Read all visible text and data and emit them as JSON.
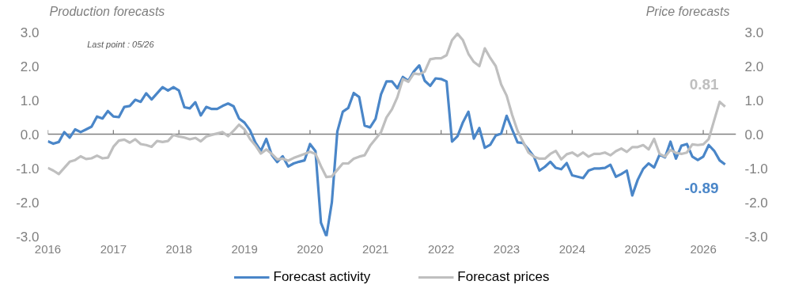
{
  "chart_data": {
    "type": "line",
    "ylabel": "Production forecasts",
    "y2label": "Price forecasts",
    "annotations": [
      "Last point : 05/26",
      {
        "text": "0.81",
        "x": "2026-05",
        "y": 0.81
      },
      {
        "text": "-0.89",
        "x": "2026-05",
        "y": -0.89
      }
    ],
    "x": [
      "2016-01",
      "2016-02",
      "2016-03",
      "2016-04",
      "2016-05",
      "2016-06",
      "2016-07",
      "2016-08",
      "2016-09",
      "2016-10",
      "2016-11",
      "2016-12",
      "2017-01",
      "2017-02",
      "2017-03",
      "2017-04",
      "2017-05",
      "2017-06",
      "2017-07",
      "2017-08",
      "2017-09",
      "2017-10",
      "2017-11",
      "2017-12",
      "2018-01",
      "2018-02",
      "2018-03",
      "2018-04",
      "2018-05",
      "2018-06",
      "2018-07",
      "2018-08",
      "2018-09",
      "2018-10",
      "2018-11",
      "2018-12",
      "2019-01",
      "2019-02",
      "2019-03",
      "2019-04",
      "2019-05",
      "2019-06",
      "2019-07",
      "2019-08",
      "2019-09",
      "2019-10",
      "2019-11",
      "2019-12",
      "2020-01",
      "2020-02",
      "2020-03",
      "2020-04",
      "2020-05",
      "2020-06",
      "2020-07",
      "2020-08",
      "2020-09",
      "2020-10",
      "2020-11",
      "2020-12",
      "2021-01",
      "2021-02",
      "2021-03",
      "2021-04",
      "2021-05",
      "2021-06",
      "2021-07",
      "2021-08",
      "2021-09",
      "2021-10",
      "2021-11",
      "2021-12",
      "2022-01",
      "2022-02",
      "2022-03",
      "2022-04",
      "2022-05",
      "2022-06",
      "2022-07",
      "2022-08",
      "2022-09",
      "2022-10",
      "2022-11",
      "2022-12",
      "2023-01",
      "2023-02",
      "2023-03",
      "2023-04",
      "2023-05",
      "2023-06",
      "2023-07",
      "2023-08",
      "2023-09",
      "2023-10",
      "2023-11",
      "2023-12",
      "2024-01",
      "2024-02",
      "2024-03",
      "2024-04",
      "2024-05",
      "2024-06",
      "2024-07",
      "2024-08",
      "2024-09",
      "2024-10",
      "2024-11",
      "2024-12",
      "2025-01",
      "2025-02",
      "2025-03",
      "2025-04",
      "2025-05",
      "2025-06",
      "2025-07",
      "2025-08",
      "2025-09",
      "2025-10",
      "2025-11",
      "2025-12",
      "2026-01",
      "2026-02",
      "2026-03",
      "2026-04",
      "2026-05"
    ],
    "series": [
      {
        "name": "Forecast activity",
        "color": "#4a86c8",
        "values": [
          -0.21,
          -0.28,
          -0.23,
          0.06,
          -0.1,
          0.14,
          0.06,
          0.14,
          0.22,
          0.52,
          0.46,
          0.68,
          0.52,
          0.5,
          0.8,
          0.83,
          1.01,
          0.95,
          1.2,
          1.02,
          1.2,
          1.38,
          1.28,
          1.38,
          1.28,
          0.79,
          0.76,
          0.94,
          0.55,
          0.8,
          0.74,
          0.74,
          0.83,
          0.9,
          0.82,
          0.46,
          0.34,
          0.12,
          -0.25,
          -0.49,
          -0.14,
          -0.61,
          -0.82,
          -0.65,
          -0.95,
          -0.86,
          -0.81,
          -0.77,
          -0.29,
          -0.5,
          -2.6,
          -3.0,
          -2.0,
          0.08,
          0.66,
          0.77,
          1.21,
          1.09,
          0.25,
          0.2,
          0.45,
          1.17,
          1.55,
          1.55,
          1.35,
          1.68,
          1.57,
          1.84,
          2.02,
          1.57,
          1.42,
          1.64,
          1.62,
          1.55,
          -0.22,
          -0.06,
          0.35,
          0.66,
          -0.13,
          0.18,
          -0.4,
          -0.31,
          -0.04,
          0.02,
          0.54,
          0.14,
          -0.24,
          -0.26,
          -0.45,
          -0.66,
          -1.07,
          -0.96,
          -0.81,
          -0.99,
          -1.03,
          -0.85,
          -1.21,
          -1.25,
          -1.29,
          -1.07,
          -1.01,
          -1.01,
          -0.99,
          -0.9,
          -1.25,
          -1.17,
          -1.07,
          -1.8,
          -1.34,
          -1.02,
          -0.86,
          -0.98,
          -0.6,
          -0.68,
          -0.22,
          -0.72,
          -0.34,
          -0.29,
          -0.66,
          -0.76,
          -0.66,
          -0.32,
          -0.49,
          -0.77,
          -0.89
        ]
      },
      {
        "name": "Forecast prices",
        "color": "#bfbfbf",
        "values": [
          -0.99,
          -1.07,
          -1.17,
          -0.99,
          -0.81,
          -0.76,
          -0.65,
          -0.73,
          -0.71,
          -0.63,
          -0.71,
          -0.69,
          -0.37,
          -0.19,
          -0.16,
          -0.25,
          -0.15,
          -0.29,
          -0.32,
          -0.37,
          -0.2,
          -0.23,
          -0.2,
          -0.02,
          -0.07,
          -0.1,
          -0.15,
          -0.11,
          -0.21,
          -0.07,
          -0.02,
          0.02,
          0.06,
          -0.06,
          0.1,
          0.28,
          0.14,
          -0.14,
          -0.33,
          -0.57,
          -0.45,
          -0.58,
          -0.74,
          -0.72,
          -0.78,
          -0.7,
          -0.64,
          -0.58,
          -0.52,
          -0.58,
          -0.94,
          -1.26,
          -1.24,
          -1.05,
          -0.86,
          -0.86,
          -0.72,
          -0.66,
          -0.62,
          -0.34,
          -0.14,
          0.06,
          0.49,
          0.73,
          1.09,
          1.62,
          1.54,
          1.78,
          1.76,
          1.84,
          2.2,
          2.23,
          2.23,
          2.32,
          2.76,
          2.95,
          2.76,
          2.36,
          2.12,
          2.0,
          2.52,
          2.24,
          2.0,
          1.46,
          1.13,
          0.57,
          0.1,
          -0.22,
          -0.54,
          -0.66,
          -0.72,
          -0.72,
          -0.58,
          -0.49,
          -0.74,
          -0.59,
          -0.54,
          -0.64,
          -0.54,
          -0.66,
          -0.58,
          -0.58,
          -0.54,
          -0.62,
          -0.5,
          -0.42,
          -0.52,
          -0.38,
          -0.38,
          -0.32,
          -0.45,
          -0.14,
          -0.58,
          -0.66,
          -0.46,
          -0.55,
          -0.58,
          -0.54,
          -0.3,
          -0.32,
          -0.3,
          -0.14,
          0.41,
          0.95,
          0.81
        ]
      }
    ],
    "xlim": [
      "2016-01",
      "2026-07"
    ],
    "xticks": [
      "2016",
      "2017",
      "2018",
      "2019",
      "2020",
      "2021",
      "2022",
      "2023",
      "2024",
      "2025",
      "2026"
    ],
    "ylim": [
      -3,
      3
    ],
    "yticks": [
      {
        "value": -3,
        "label": "-3.0"
      },
      {
        "value": -2,
        "label": "-2.0"
      },
      {
        "value": -1,
        "label": "-1.0"
      },
      {
        "value": 0,
        "label": "0.0"
      },
      {
        "value": 1,
        "label": "1.0"
      },
      {
        "value": 2,
        "label": "2.0"
      },
      {
        "value": 3,
        "label": "3.0"
      }
    ],
    "y2lim": [
      -3,
      3
    ],
    "y2ticks": [
      {
        "value": -3,
        "label": "-3.0"
      },
      {
        "value": -2,
        "label": "-2.0"
      },
      {
        "value": -1,
        "label": "-1.0"
      },
      {
        "value": 0,
        "label": "0.0"
      },
      {
        "value": 1,
        "label": "1.0"
      },
      {
        "value": 2,
        "label": "2.0"
      },
      {
        "value": 3,
        "label": "3.0"
      }
    ],
    "ref_lines": [
      {
        "axis": "y",
        "value": 0,
        "color": "#808080"
      }
    ],
    "grid": false,
    "legend": "bottom",
    "marker": "none",
    "line_style": "solid"
  }
}
